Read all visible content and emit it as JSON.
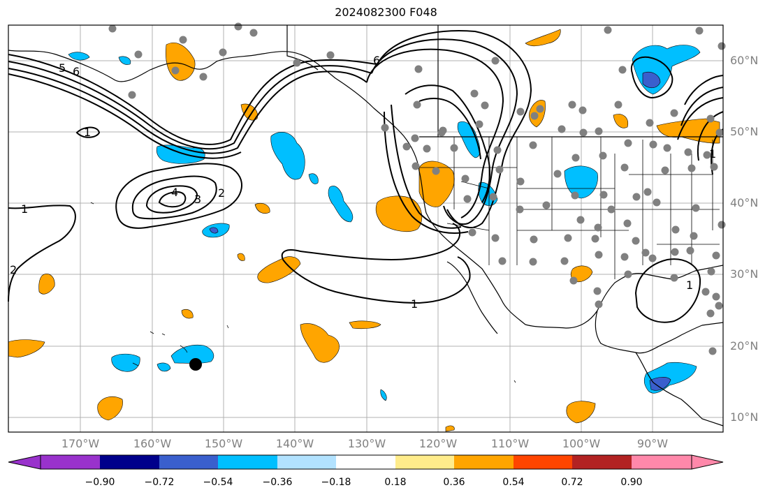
{
  "title": "2024082300 F048",
  "lat_labels": [
    "60°N",
    "50°N",
    "40°N",
    "30°N",
    "20°N",
    "10°N"
  ],
  "lon_labels": [
    "170°W",
    "160°W",
    "150°W",
    "140°W",
    "130°W",
    "120°W",
    "110°W",
    "100°W",
    "90°W"
  ],
  "colorbar": {
    "ticks": [
      "−0.90",
      "−0.72",
      "−0.54",
      "−0.36",
      "−0.18",
      "0.18",
      "0.36",
      "0.54",
      "0.72",
      "0.90"
    ],
    "colors": [
      "#9932cc",
      "#00008b",
      "#3a5fcd",
      "#00bfff",
      "#b2e2ff",
      "#ffffff",
      "#ffec8b",
      "#ffa500",
      "#ff4500",
      "#b22222",
      "#ff88aa"
    ]
  },
  "contour_labels": [
    "1",
    "2",
    "3",
    "4",
    "5",
    "6",
    "1",
    "1",
    "1",
    "1",
    "2",
    "6"
  ],
  "fill_colors": {
    "orange": "#ffa500",
    "cyan": "#00bfff",
    "blue": "#3a5fcd",
    "yellow": "#ffec8b"
  },
  "marker_color": "#808080"
}
